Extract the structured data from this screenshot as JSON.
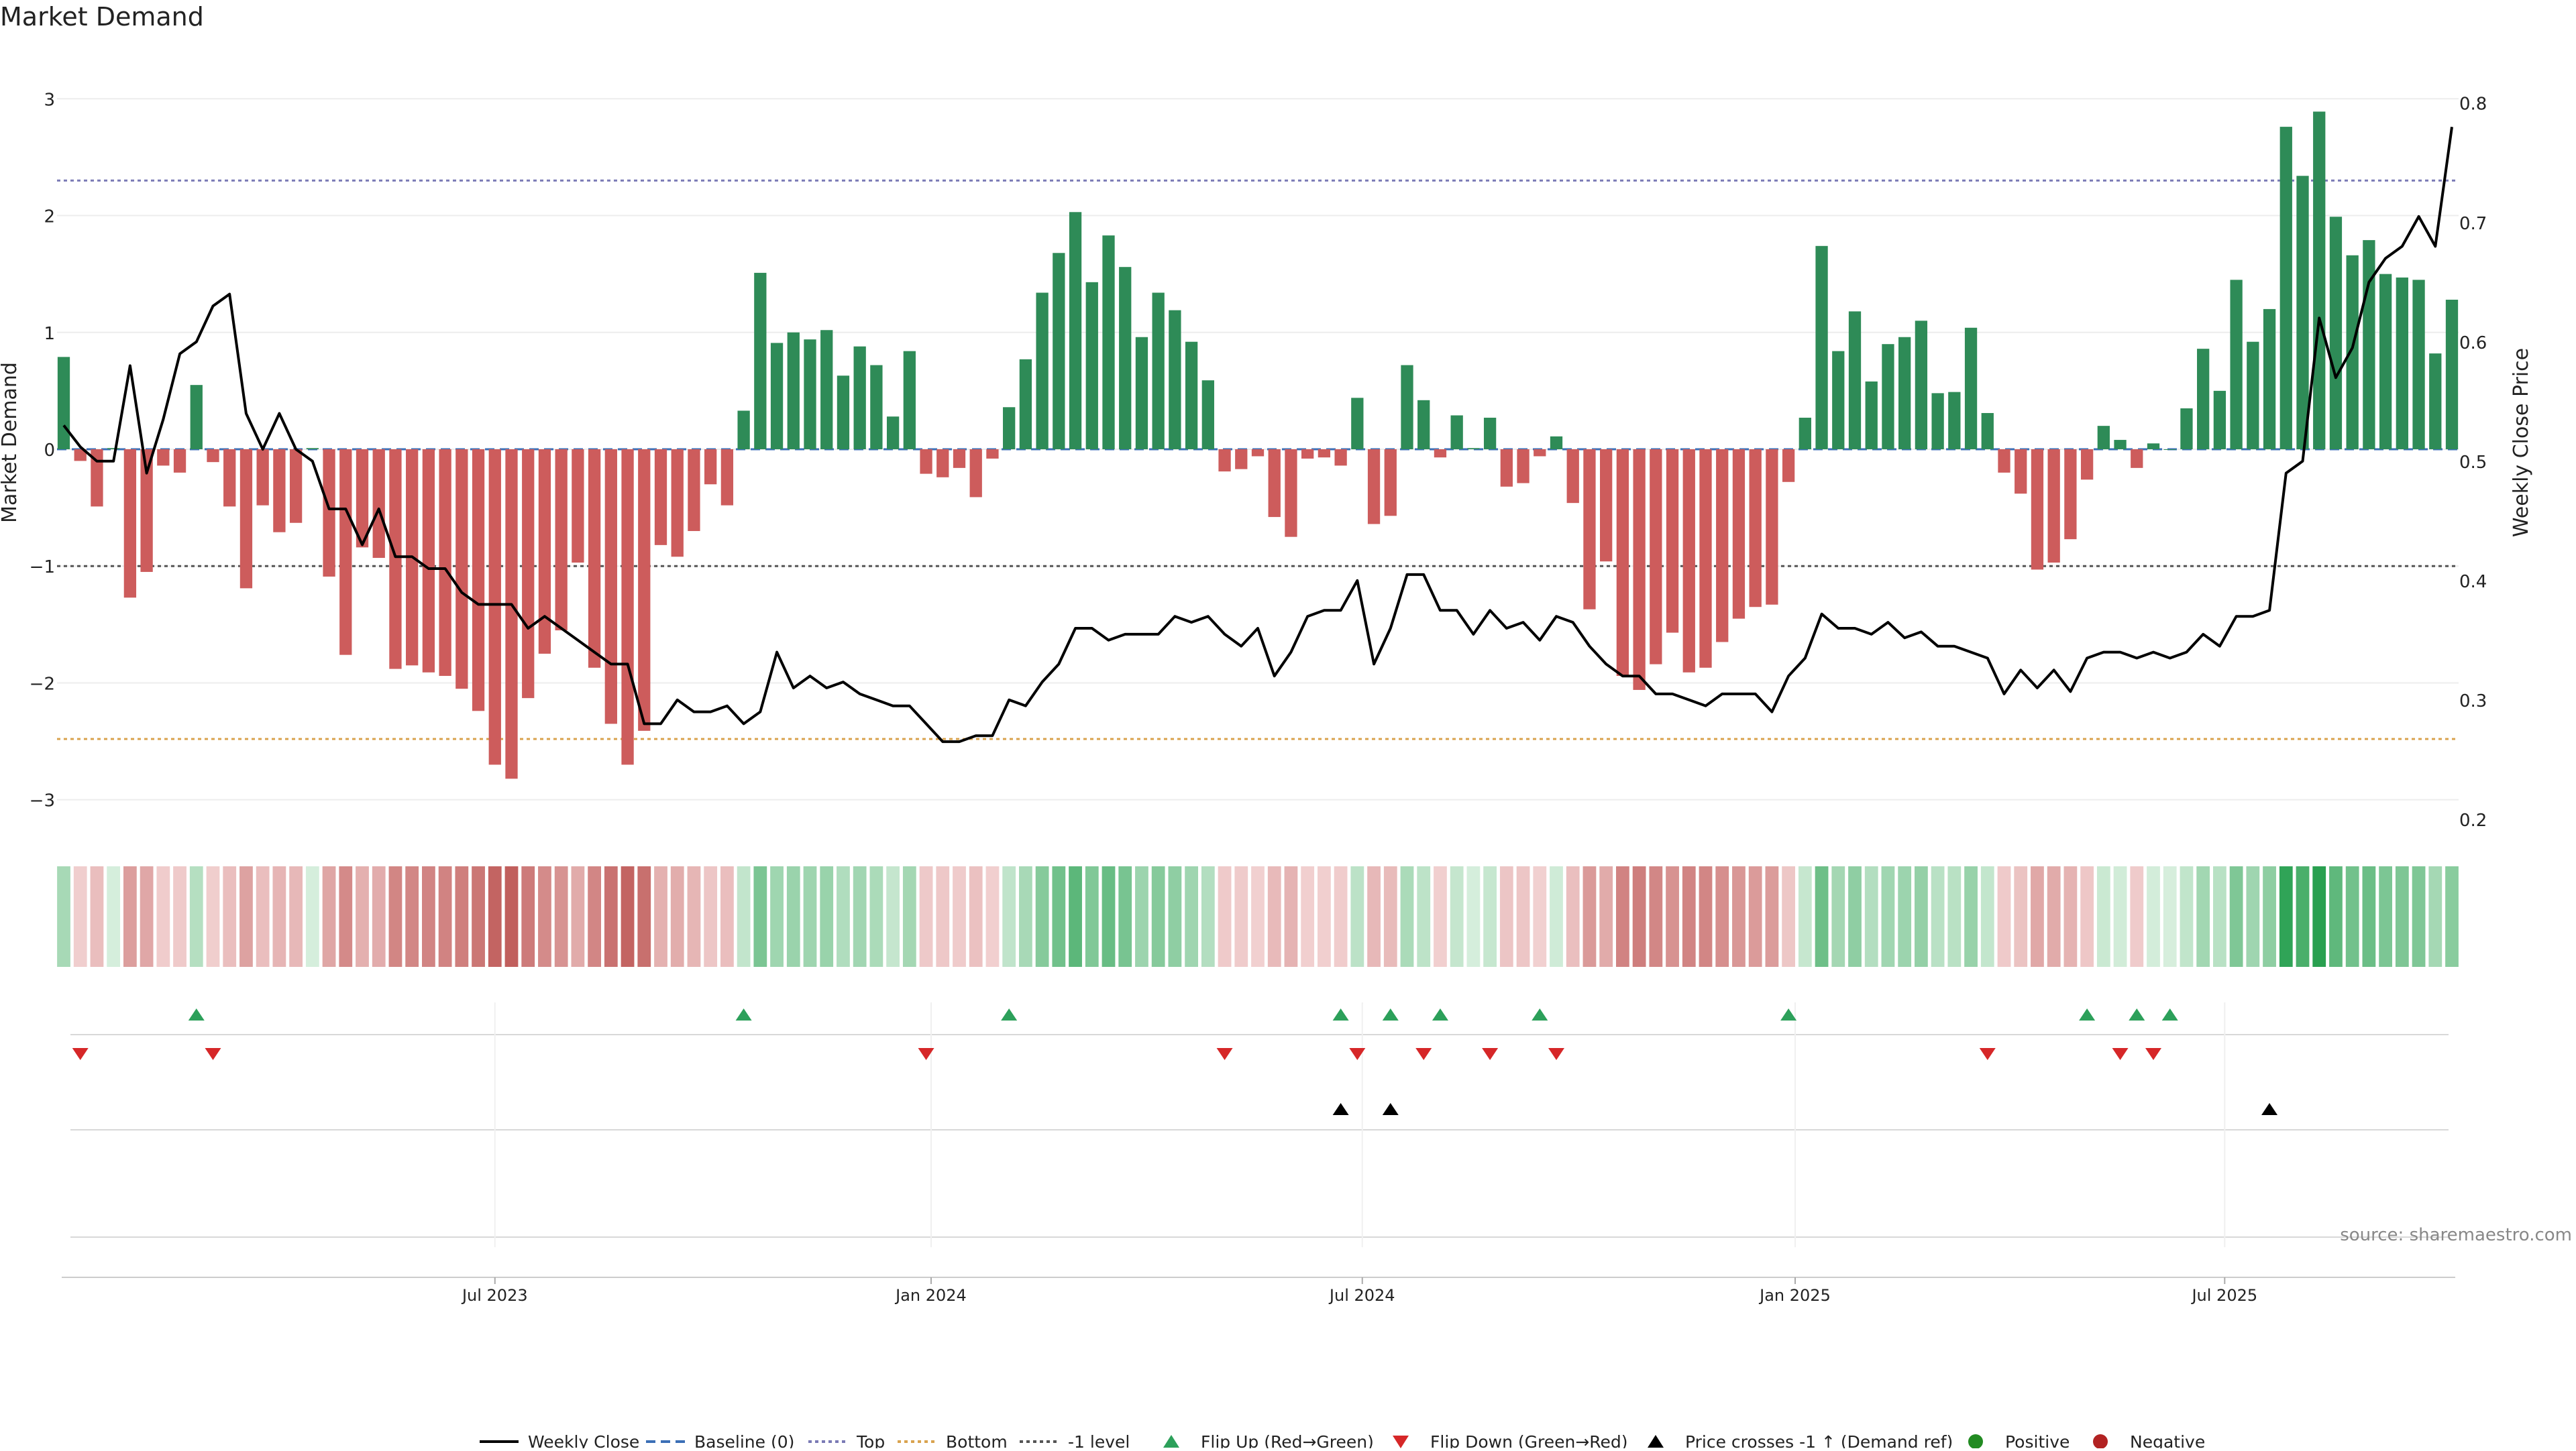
{
  "chart_data": {
    "type": "bar",
    "title": "Market Demand",
    "ylabel": "Market Demand",
    "y2label": "Weekly Close Price",
    "ylim": [
      -3.3,
      3.3
    ],
    "y2lim": [
      0.187,
      0.833
    ],
    "yticks": [
      "3",
      "2",
      "1",
      "0",
      "−1",
      "−2",
      "−3"
    ],
    "yticks_values": [
      3,
      2,
      1,
      0,
      -1,
      -2,
      -3
    ],
    "y2ticks": [
      "0.8",
      "0.7",
      "0.6",
      "0.5",
      "0.4",
      "0.3",
      "0.2"
    ],
    "y2ticks_values": [
      0.8,
      0.7,
      0.6,
      0.5,
      0.4,
      0.3,
      0.2
    ],
    "x_start": "2023-01-01",
    "x_step": "1 week",
    "x_ticks": [
      {
        "label": "Jul 2023",
        "week": 26
      },
      {
        "label": "Jan 2024",
        "week": 52.3
      },
      {
        "label": "Jul 2024",
        "week": 78.3
      },
      {
        "label": "Jan 2025",
        "week": 104.4
      },
      {
        "label": "Jul 2025",
        "week": 130.3
      }
    ],
    "demand": [
      0.79,
      -0.1,
      -0.49,
      0.01,
      -1.27,
      -1.05,
      -0.14,
      -0.2,
      0.55,
      -0.11,
      -0.49,
      -1.19,
      -0.48,
      -0.71,
      -0.63,
      0.01,
      -1.09,
      -1.76,
      -0.84,
      -0.93,
      -1.88,
      -1.85,
      -1.91,
      -1.94,
      -2.05,
      -2.24,
      -2.7,
      -2.82,
      -2.13,
      -1.75,
      -1.55,
      -0.97,
      -1.87,
      -2.35,
      -2.7,
      -2.41,
      -0.82,
      -0.92,
      -0.7,
      -0.3,
      -0.48,
      0.33,
      1.51,
      0.91,
      1.0,
      0.94,
      1.02,
      0.63,
      0.88,
      0.72,
      0.28,
      0.84,
      -0.21,
      -0.24,
      -0.16,
      -0.41,
      -0.08,
      0.36,
      0.77,
      1.34,
      1.68,
      2.03,
      1.43,
      1.83,
      1.56,
      0.96,
      1.34,
      1.19,
      0.92,
      0.59,
      -0.19,
      -0.17,
      -0.06,
      -0.58,
      -0.75,
      -0.08,
      -0.07,
      -0.14,
      0.44,
      -0.64,
      -0.57,
      0.72,
      0.42,
      -0.07,
      0.29,
      0.01,
      0.27,
      -0.32,
      -0.29,
      -0.06,
      0.11,
      -0.46,
      -1.37,
      -0.96,
      -1.94,
      -2.06,
      -1.84,
      -1.57,
      -1.91,
      -1.87,
      -1.65,
      -1.45,
      -1.35,
      -1.33,
      -0.28,
      0.27,
      1.74,
      0.84,
      1.18,
      0.58,
      0.9,
      0.96,
      1.1,
      0.48,
      0.49,
      1.04,
      0.31,
      -0.2,
      -0.38,
      -1.03,
      -0.97,
      -0.77,
      -0.26,
      0.2,
      0.08,
      -0.16,
      0.05,
      0.0,
      0.35,
      0.86,
      0.5,
      1.45,
      0.92,
      1.2,
      2.76,
      2.34,
      2.89,
      1.99,
      1.66,
      1.79,
      1.5,
      1.47,
      1.45,
      0.82,
      1.28
    ],
    "close": [
      0.53,
      0.512,
      0.5,
      0.5,
      0.58,
      0.49,
      0.535,
      0.59,
      0.6,
      0.63,
      0.64,
      0.54,
      0.51,
      0.54,
      0.51,
      0.5,
      0.46,
      0.46,
      0.43,
      0.46,
      0.42,
      0.42,
      0.41,
      0.41,
      0.39,
      0.38,
      0.38,
      0.38,
      0.36,
      0.37,
      0.36,
      0.35,
      0.34,
      0.33,
      0.33,
      0.28,
      0.28,
      0.3,
      0.29,
      0.29,
      0.295,
      0.28,
      0.29,
      0.34,
      0.31,
      0.32,
      0.31,
      0.315,
      0.305,
      0.3,
      0.295,
      0.295,
      0.28,
      0.265,
      0.265,
      0.27,
      0.27,
      0.3,
      0.295,
      0.315,
      0.33,
      0.36,
      0.36,
      0.35,
      0.355,
      0.355,
      0.355,
      0.37,
      0.365,
      0.37,
      0.355,
      0.345,
      0.36,
      0.32,
      0.34,
      0.37,
      0.375,
      0.375,
      0.4,
      0.33,
      0.36,
      0.405,
      0.405,
      0.375,
      0.375,
      0.355,
      0.375,
      0.36,
      0.365,
      0.35,
      0.37,
      0.365,
      0.345,
      0.33,
      0.32,
      0.32,
      0.305,
      0.305,
      0.3,
      0.295,
      0.305,
      0.305,
      0.305,
      0.29,
      0.32,
      0.335,
      0.372,
      0.36,
      0.36,
      0.355,
      0.365,
      0.352,
      0.357,
      0.345,
      0.345,
      0.34,
      0.335,
      0.305,
      0.325,
      0.31,
      0.325,
      0.307,
      0.335,
      0.34,
      0.34,
      0.335,
      0.34,
      0.335,
      0.34,
      0.355,
      0.345,
      0.37,
      0.37,
      0.375,
      0.49,
      0.5,
      0.62,
      0.57,
      0.595,
      0.65,
      0.67,
      0.68,
      0.705,
      0.68,
      0.78
    ],
    "reference_lines": [
      {
        "name": "Top",
        "value": 2.3,
        "color": "#7a7ab5",
        "dash": "dotted"
      },
      {
        "name": "-1 level",
        "value": -1,
        "color": "#555555",
        "dash": "dotted"
      },
      {
        "name": "Bottom",
        "value": -2.48,
        "color": "#d9a34f",
        "dash": "dotted"
      },
      {
        "name": "Baseline (0)",
        "value": 0,
        "color": "#3b6fb6",
        "dash": "dashed"
      }
    ],
    "flip_up_weeks": [
      8,
      41,
      57,
      77,
      80,
      83,
      89,
      104,
      122,
      125,
      127
    ],
    "flip_down_weeks": [
      1,
      9,
      52,
      70,
      78,
      82,
      86,
      90,
      116,
      124,
      126
    ],
    "price_cross_weeks": [
      77,
      80,
      133
    ],
    "legend": [
      "Weekly Close",
      "Baseline (0)",
      "Top",
      "Bottom",
      "-1 level",
      "Flip Up (Red→Green)",
      "Flip Down (Green→Red)",
      "Price crosses -1 ↑ (Demand ref)",
      "Positive",
      "Negative"
    ],
    "legend_placement": "bottom-center",
    "source": "source: sharemaestro.com",
    "colors": {
      "positive": "#2e8b57",
      "negative": "#cd5c5c",
      "price": "#000000",
      "flip_up": "#2ca05a",
      "flip_down": "#d62728",
      "cross": "#000000",
      "positive_dot": "#228b22",
      "negative_dot": "#b22222"
    }
  }
}
